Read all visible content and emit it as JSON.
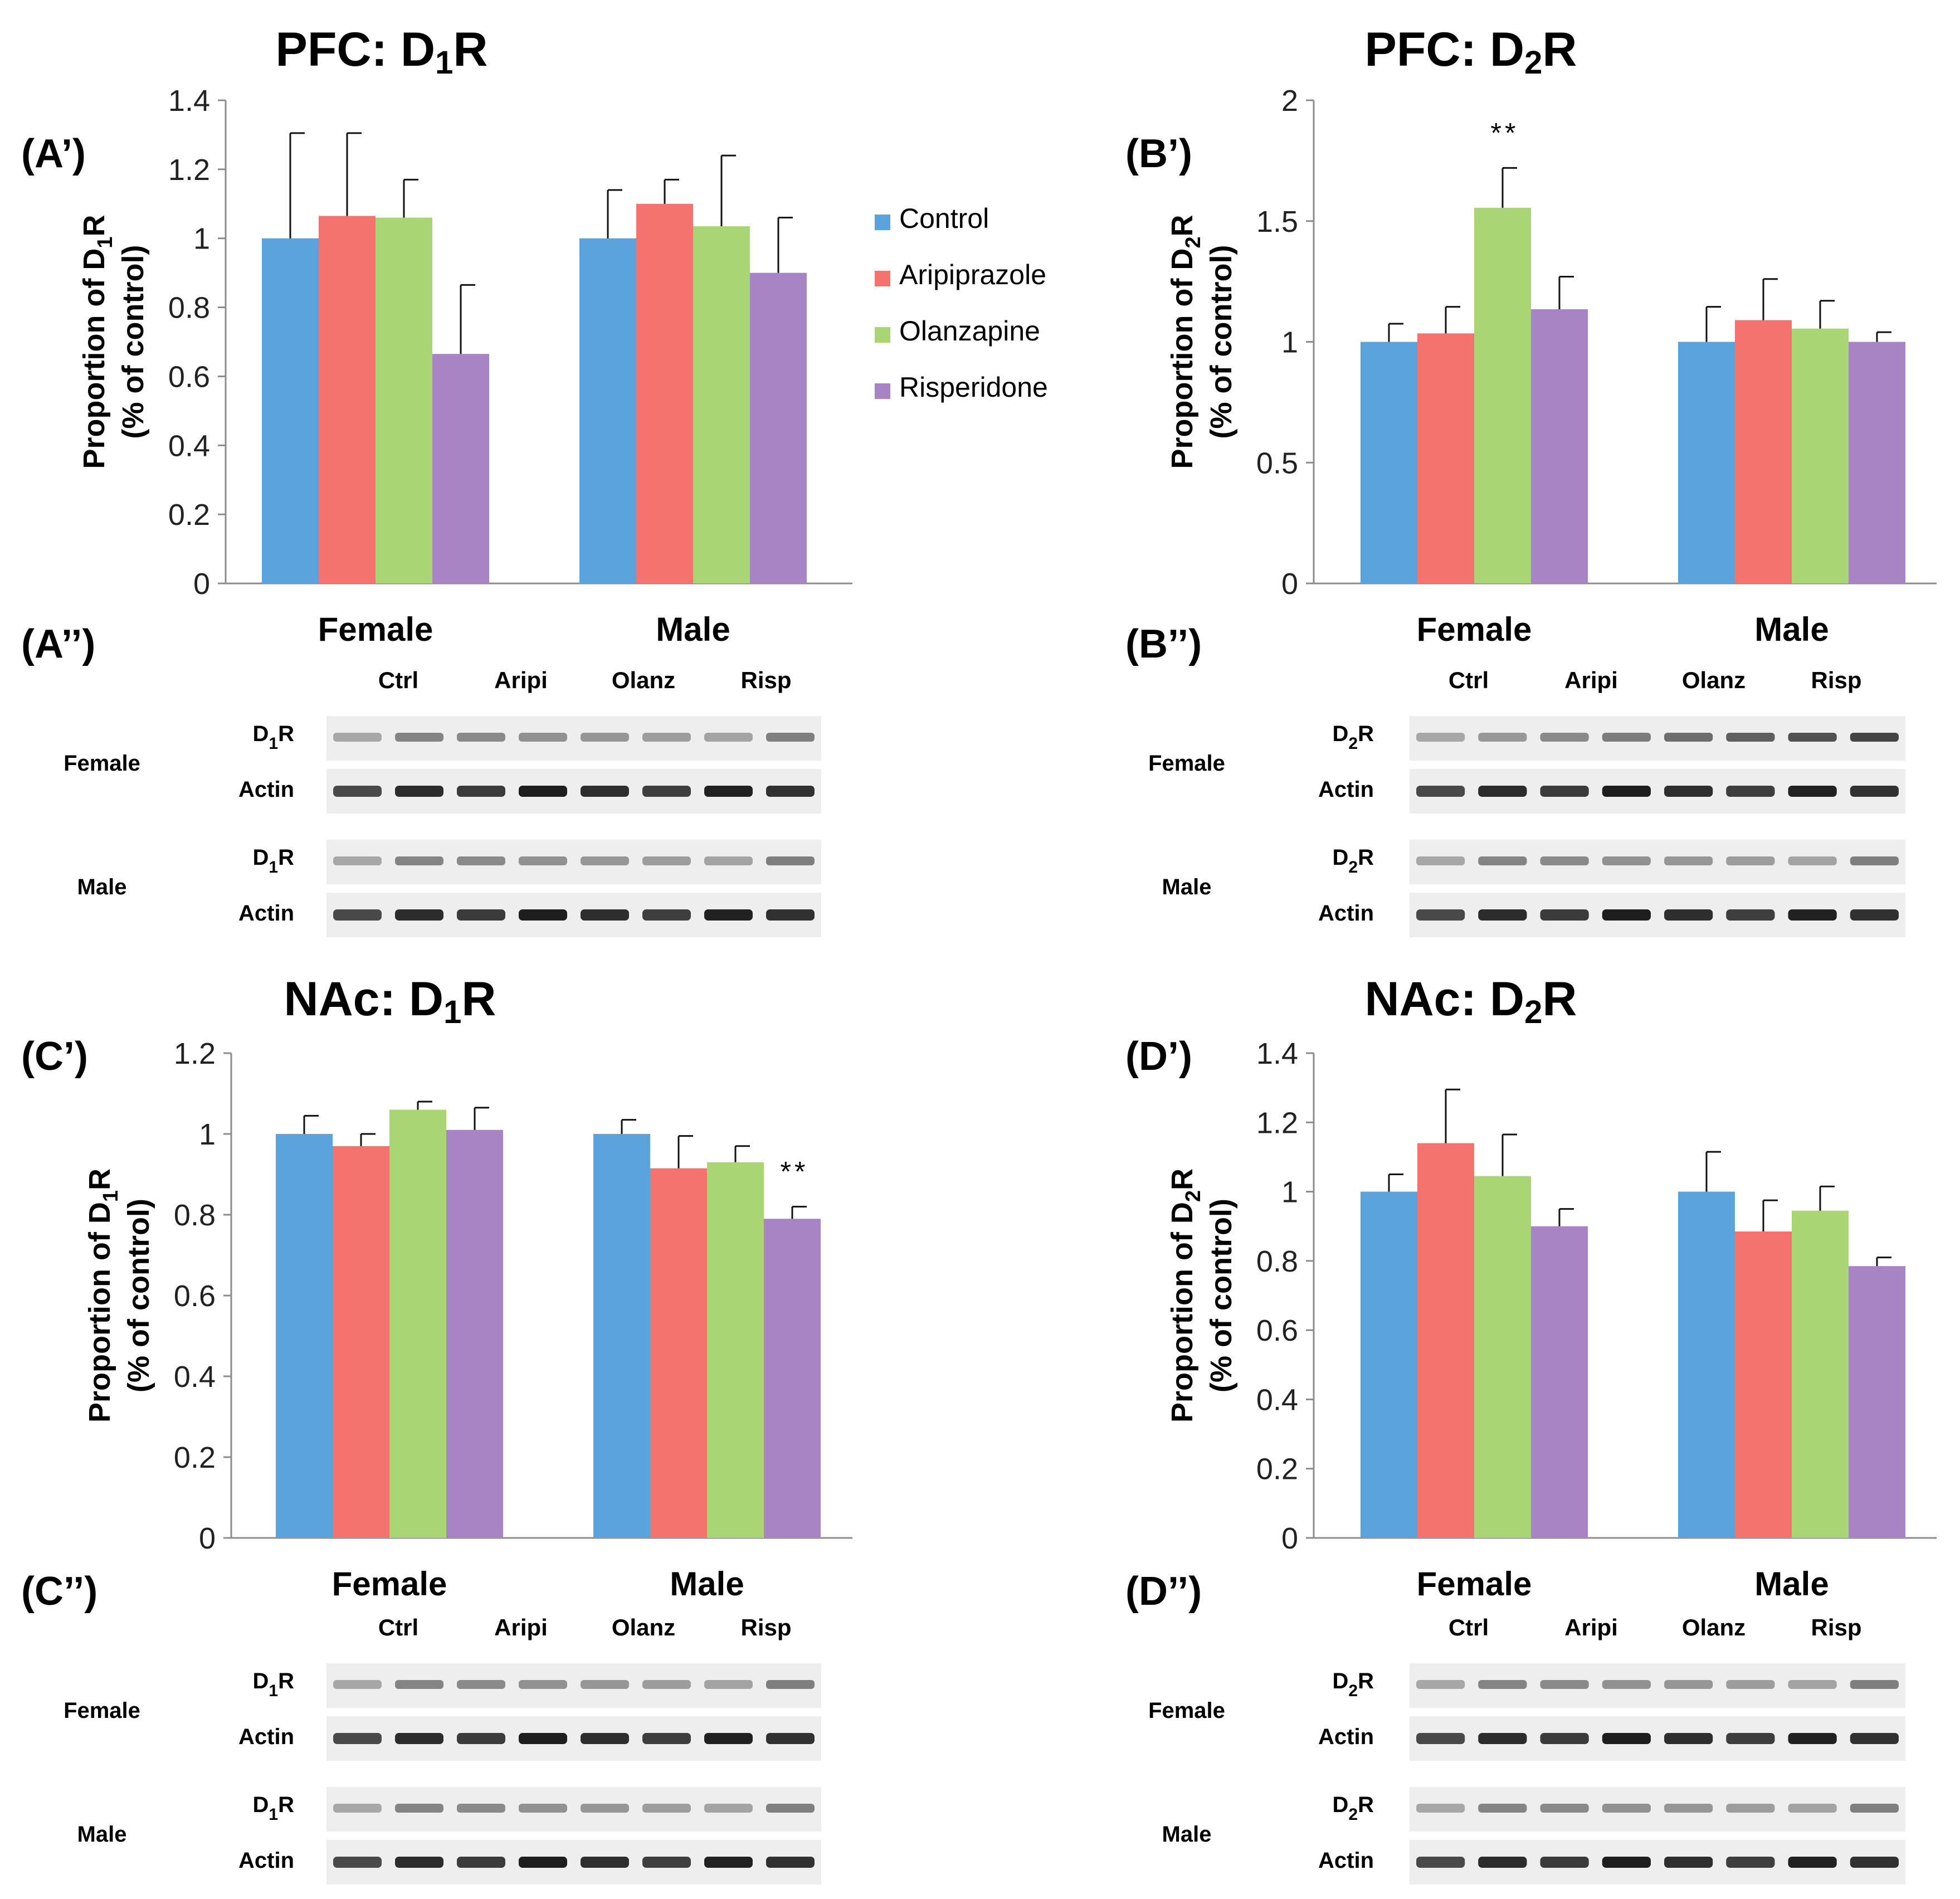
{
  "colors": {
    "Control": "#5ba3dc",
    "Aripiprazole": "#f4736f",
    "Olanzapine": "#a9d575",
    "Risperidone": "#a984c4",
    "axis": "#8c8c8c",
    "error": "#111111"
  },
  "legend": {
    "items": [
      {
        "name": "Control",
        "color": "#5ba3dc"
      },
      {
        "name": "Aripiprazole",
        "color": "#f4736f"
      },
      {
        "name": "Olanzapine",
        "color": "#a9d575"
      },
      {
        "name": "Risperidone",
        "color": "#a984c4"
      }
    ]
  },
  "chart_data": [
    {
      "panel": "A",
      "type": "bar",
      "title": {
        "pre": "PFC: D",
        "sub": "1",
        "post": "R"
      },
      "label_main": "(A’)",
      "label_blot": "(A’’)",
      "ylabel": {
        "line1_pre": "Proportion of D",
        "line1_sub": "1",
        "line1_post": "R",
        "line2": "(% of control)"
      },
      "ylim": [
        0,
        1.4
      ],
      "yticks": [
        "0",
        "0.2",
        "0.4",
        "0.6",
        "0.8",
        "1",
        "1.2",
        "1.4"
      ],
      "categories": [
        "Female",
        "Male"
      ],
      "series": [
        {
          "name": "Control",
          "values": [
            1.0,
            1.0
          ],
          "errors": [
            0.305,
            0.14
          ]
        },
        {
          "name": "Aripiprazole",
          "values": [
            1.065,
            1.1
          ],
          "errors": [
            0.24,
            0.07
          ]
        },
        {
          "name": "Olanzapine",
          "values": [
            1.06,
            1.035
          ],
          "errors": [
            0.11,
            0.205
          ]
        },
        {
          "name": "Risperidone",
          "values": [
            0.665,
            0.9
          ],
          "errors": [
            0.2,
            0.16
          ]
        }
      ],
      "annotations": [],
      "blot": {
        "lanes": [
          "Ctrl",
          "Aripi",
          "Olanz",
          "Risp"
        ],
        "groups": [
          {
            "sex": "Female",
            "receptor": {
              "pre": "D",
              "sub": "1",
              "post": "R"
            },
            "actin": "Actin"
          },
          {
            "sex": "Male",
            "receptor": {
              "pre": "D",
              "sub": "1",
              "post": "R"
            },
            "actin": "Actin"
          }
        ]
      }
    },
    {
      "panel": "B",
      "type": "bar",
      "title": {
        "pre": "PFC: D",
        "sub": "2",
        "post": "R"
      },
      "label_main": "(B’)",
      "label_blot": "(B’’)",
      "ylabel": {
        "line1_pre": "Proportion of D",
        "line1_sub": "2",
        "line1_post": "R",
        "line2": "(% of control)"
      },
      "ylim": [
        0,
        2
      ],
      "yticks": [
        "0",
        "0.5",
        "1",
        "1.5",
        "2"
      ],
      "categories": [
        "Female",
        "Male"
      ],
      "series": [
        {
          "name": "Control",
          "values": [
            1.0,
            1.0
          ],
          "errors": [
            0.075,
            0.145
          ]
        },
        {
          "name": "Aripiprazole",
          "values": [
            1.035,
            1.09
          ],
          "errors": [
            0.11,
            0.17
          ]
        },
        {
          "name": "Olanzapine",
          "values": [
            1.555,
            1.055
          ],
          "errors": [
            0.165,
            0.115
          ]
        },
        {
          "name": "Risperidone",
          "values": [
            1.135,
            1.0
          ],
          "errors": [
            0.135,
            0.04
          ]
        }
      ],
      "annotations": [
        {
          "text": "**",
          "category": 0,
          "series": 2
        }
      ],
      "blot": {
        "lanes": [
          "Ctrl",
          "Aripi",
          "Olanz",
          "Risp"
        ],
        "groups": [
          {
            "sex": "Female",
            "receptor": {
              "pre": "D",
              "sub": "2",
              "post": "R"
            },
            "actin": "Actin"
          },
          {
            "sex": "Male",
            "receptor": {
              "pre": "D",
              "sub": "2",
              "post": "R"
            },
            "actin": "Actin"
          }
        ]
      }
    },
    {
      "panel": "C",
      "type": "bar",
      "title": {
        "pre": "NAc: D",
        "sub": "1",
        "post": "R"
      },
      "label_main": "(C’)",
      "label_blot": "(C’’)",
      "ylabel": {
        "line1_pre": "Proportion of D",
        "line1_sub": "1",
        "line1_post": "R",
        "line2": "(% of control)"
      },
      "ylim": [
        0,
        1.2
      ],
      "yticks": [
        "0",
        "0.2",
        "0.4",
        "0.6",
        "0.8",
        "1",
        "1.2"
      ],
      "categories": [
        "Female",
        "Male"
      ],
      "series": [
        {
          "name": "Control",
          "values": [
            1.0,
            1.0
          ],
          "errors": [
            0.045,
            0.035
          ]
        },
        {
          "name": "Aripiprazole",
          "values": [
            0.97,
            0.915
          ],
          "errors": [
            0.03,
            0.08
          ]
        },
        {
          "name": "Olanzapine",
          "values": [
            1.06,
            0.93
          ],
          "errors": [
            0.02,
            0.04
          ]
        },
        {
          "name": "Risperidone",
          "values": [
            1.01,
            0.79
          ],
          "errors": [
            0.055,
            0.03
          ]
        }
      ],
      "annotations": [
        {
          "text": "**",
          "category": 1,
          "series": 3
        }
      ],
      "blot": {
        "lanes": [
          "Ctrl",
          "Aripi",
          "Olanz",
          "Risp"
        ],
        "groups": [
          {
            "sex": "Female",
            "receptor": {
              "pre": "D",
              "sub": "1",
              "post": "R"
            },
            "actin": "Actin"
          },
          {
            "sex": "Male",
            "receptor": {
              "pre": "D",
              "sub": "1",
              "post": "R"
            },
            "actin": "Actin"
          }
        ]
      }
    },
    {
      "panel": "D",
      "type": "bar",
      "title": {
        "pre": "NAc: D",
        "sub": "2",
        "post": "R"
      },
      "label_main": "(D’)",
      "label_blot": "(D’’)",
      "ylabel": {
        "line1_pre": "Proportion of D",
        "line1_sub": "2",
        "line1_post": "R",
        "line2": "(% of control)"
      },
      "ylim": [
        0,
        1.4
      ],
      "yticks": [
        "0",
        "0.2",
        "0.4",
        "0.6",
        "0.8",
        "1",
        "1.2",
        "1.4"
      ],
      "categories": [
        "Female",
        "Male"
      ],
      "series": [
        {
          "name": "Control",
          "values": [
            1.0,
            1.0
          ],
          "errors": [
            0.05,
            0.115
          ]
        },
        {
          "name": "Aripiprazole",
          "values": [
            1.14,
            0.885
          ],
          "errors": [
            0.155,
            0.09
          ]
        },
        {
          "name": "Olanzapine",
          "values": [
            1.045,
            0.945
          ],
          "errors": [
            0.12,
            0.07
          ]
        },
        {
          "name": "Risperidone",
          "values": [
            0.9,
            0.785
          ],
          "errors": [
            0.05,
            0.025
          ]
        }
      ],
      "annotations": [],
      "blot": {
        "lanes": [
          "Ctrl",
          "Aripi",
          "Olanz",
          "Risp"
        ],
        "groups": [
          {
            "sex": "Female",
            "receptor": {
              "pre": "D",
              "sub": "2",
              "post": "R"
            },
            "actin": "Actin"
          },
          {
            "sex": "Male",
            "receptor": {
              "pre": "D",
              "sub": "2",
              "post": "R"
            },
            "actin": "Actin"
          }
        ]
      }
    }
  ]
}
